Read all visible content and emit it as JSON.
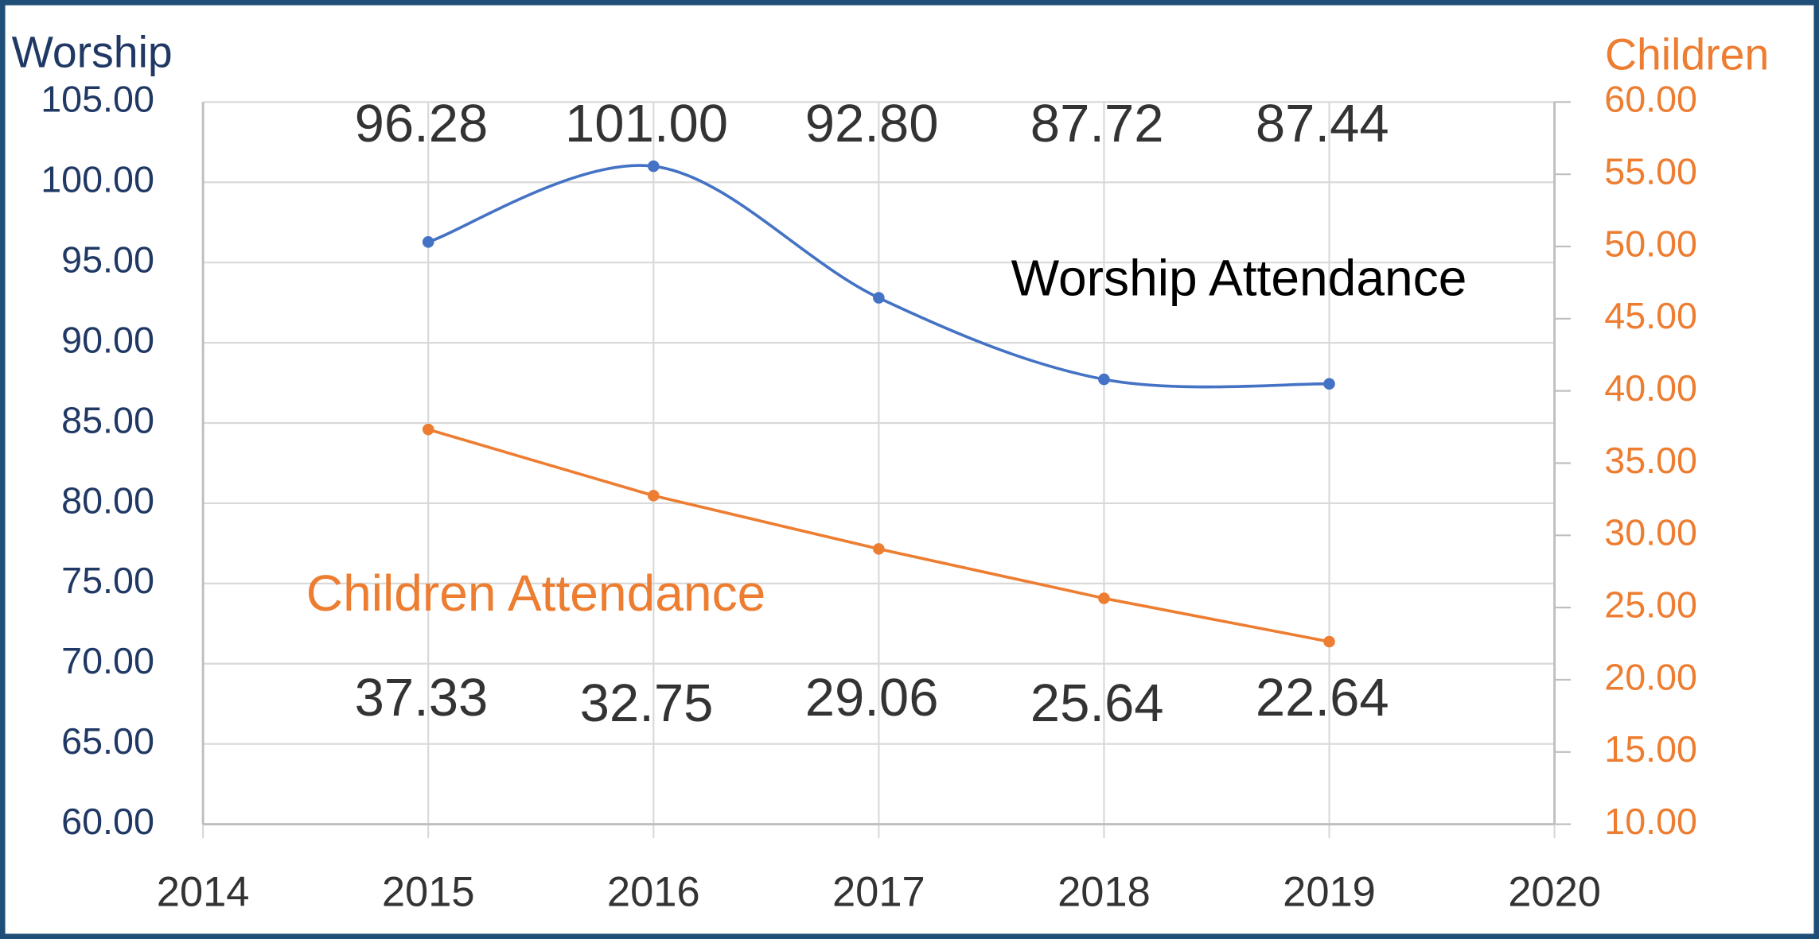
{
  "chart_data": {
    "type": "line",
    "x": [
      2015,
      2016,
      2017,
      2018,
      2019
    ],
    "xlim": [
      2014,
      2020
    ],
    "xticks": [
      2014,
      2015,
      2016,
      2017,
      2018,
      2019,
      2020
    ],
    "ylabel": "Worship",
    "y2label": "Children",
    "ylim": [
      60,
      105
    ],
    "yticks": [
      {
        "value": 60,
        "label": "60.00"
      },
      {
        "value": 65,
        "label": "65.00"
      },
      {
        "value": 70,
        "label": "70.00"
      },
      {
        "value": 75,
        "label": "75.00"
      },
      {
        "value": 80,
        "label": "80.00"
      },
      {
        "value": 85,
        "label": "85.00"
      },
      {
        "value": 90,
        "label": "90.00"
      },
      {
        "value": 95,
        "label": "95.00"
      },
      {
        "value": 100,
        "label": "100.00"
      },
      {
        "value": 105,
        "label": "105.00"
      }
    ],
    "y2lim": [
      10,
      60
    ],
    "y2ticks": [
      {
        "value": 10,
        "label": "10.00"
      },
      {
        "value": 15,
        "label": "15.00"
      },
      {
        "value": 20,
        "label": "20.00"
      },
      {
        "value": 25,
        "label": "25.00"
      },
      {
        "value": 30,
        "label": "30.00"
      },
      {
        "value": 35,
        "label": "35.00"
      },
      {
        "value": 40,
        "label": "40.00"
      },
      {
        "value": 45,
        "label": "45.00"
      },
      {
        "value": 50,
        "label": "50.00"
      },
      {
        "value": 55,
        "label": "55.00"
      },
      {
        "value": 60,
        "label": "60.00"
      }
    ],
    "grid": true,
    "series": [
      {
        "name": "Worship Attendance",
        "color": "#4472c4",
        "smooth": true,
        "values": [
          96.28,
          101,
          92.8,
          87.72,
          87.44
        ],
        "value_labels": [
          "96.28",
          "101.00",
          "92.80",
          "87.72",
          "87.44"
        ]
      },
      {
        "name": "Children Attendance",
        "color": "#ed7d31",
        "axis": "y2",
        "values": [
          37.33,
          32.75,
          29.06,
          25.64,
          22.64
        ]
      }
    ]
  }
}
